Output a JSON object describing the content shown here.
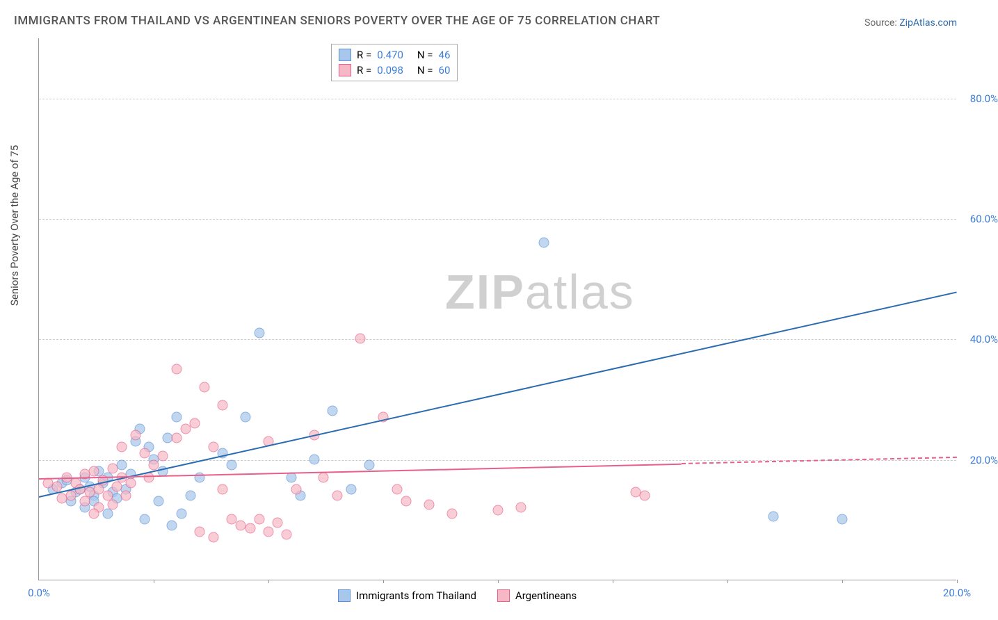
{
  "title": "IMMIGRANTS FROM THAILAND VS ARGENTINEAN SENIORS POVERTY OVER THE AGE OF 75 CORRELATION CHART",
  "source_label": "Source: ",
  "source_name": "ZipAtlas.com",
  "watermark_zip": "ZIP",
  "watermark_atlas": "atlas",
  "y_axis_label": "Seniors Poverty Over the Age of 75",
  "chart": {
    "type": "scatter",
    "xlim": [
      0,
      20
    ],
    "ylim": [
      0,
      90
    ],
    "x_ticks": [
      0,
      20
    ],
    "x_tick_labels": [
      "0.0%",
      "20.0%"
    ],
    "y_ticks": [
      20,
      40,
      60,
      80
    ],
    "y_tick_labels": [
      "20.0%",
      "40.0%",
      "60.0%",
      "80.0%"
    ],
    "grid_color": "#cccccc",
    "background_color": "#ffffff",
    "series": [
      {
        "name": "Immigrants from Thailand",
        "fill": "#a7c7eb",
        "stroke": "#5a8fd6",
        "trend_color": "#2b6cb0",
        "trend_from": [
          0,
          14
        ],
        "trend_to": [
          20,
          48
        ],
        "R": "0.470",
        "N": "46",
        "points": [
          [
            0.3,
            15
          ],
          [
            0.5,
            16
          ],
          [
            0.8,
            14.5
          ],
          [
            0.6,
            16.5
          ],
          [
            0.9,
            15
          ],
          [
            1.0,
            17
          ],
          [
            1.1,
            15.5
          ],
          [
            1.2,
            14
          ],
          [
            1.3,
            18
          ],
          [
            1.4,
            16
          ],
          [
            1.5,
            17
          ],
          [
            1.6,
            14.5
          ],
          [
            1.8,
            19
          ],
          [
            1.7,
            13.5
          ],
          [
            1.9,
            15
          ],
          [
            2.0,
            17.5
          ],
          [
            1.0,
            12
          ],
          [
            1.2,
            13
          ],
          [
            0.7,
            13
          ],
          [
            1.5,
            11
          ],
          [
            2.1,
            23
          ],
          [
            2.2,
            25
          ],
          [
            2.4,
            22
          ],
          [
            2.5,
            20
          ],
          [
            2.7,
            18
          ],
          [
            2.8,
            23.5
          ],
          [
            3.0,
            27
          ],
          [
            2.6,
            13
          ],
          [
            3.1,
            11
          ],
          [
            2.3,
            10
          ],
          [
            2.9,
            9
          ],
          [
            3.3,
            14
          ],
          [
            3.5,
            17
          ],
          [
            4.0,
            21
          ],
          [
            4.2,
            19
          ],
          [
            4.5,
            27
          ],
          [
            4.8,
            41
          ],
          [
            5.5,
            17
          ],
          [
            5.7,
            14
          ],
          [
            6.0,
            20
          ],
          [
            6.4,
            28
          ],
          [
            6.8,
            15
          ],
          [
            7.2,
            19
          ],
          [
            11.0,
            56
          ],
          [
            17.5,
            10
          ],
          [
            16.0,
            10.5
          ]
        ]
      },
      {
        "name": "Argentineans",
        "fill": "#f6b8c5",
        "stroke": "#e85f89",
        "trend_color": "#e85f89",
        "trend_from": [
          0,
          17
        ],
        "trend_to": [
          20,
          20.5
        ],
        "trend_solid_until": 14,
        "R": "0.098",
        "N": "60",
        "points": [
          [
            0.2,
            16
          ],
          [
            0.4,
            15.5
          ],
          [
            0.6,
            17
          ],
          [
            0.7,
            14
          ],
          [
            0.8,
            16
          ],
          [
            0.9,
            15
          ],
          [
            1.0,
            17.5
          ],
          [
            1.1,
            14.5
          ],
          [
            1.2,
            18
          ],
          [
            1.3,
            15
          ],
          [
            1.4,
            16.5
          ],
          [
            1.5,
            14
          ],
          [
            1.6,
            18.5
          ],
          [
            1.7,
            15.5
          ],
          [
            1.8,
            17
          ],
          [
            1.9,
            14
          ],
          [
            2.0,
            16
          ],
          [
            1.0,
            13
          ],
          [
            1.3,
            12
          ],
          [
            1.6,
            12.5
          ],
          [
            0.5,
            13.5
          ],
          [
            1.2,
            11
          ],
          [
            2.1,
            24
          ],
          [
            1.8,
            22
          ],
          [
            2.3,
            21
          ],
          [
            2.5,
            19
          ],
          [
            2.7,
            20.5
          ],
          [
            2.4,
            17
          ],
          [
            3.0,
            23.5
          ],
          [
            3.2,
            25
          ],
          [
            3.0,
            35
          ],
          [
            3.4,
            26
          ],
          [
            3.6,
            32
          ],
          [
            3.8,
            22
          ],
          [
            4.0,
            29
          ],
          [
            4.0,
            15
          ],
          [
            4.2,
            10
          ],
          [
            4.4,
            9
          ],
          [
            4.6,
            8.5
          ],
          [
            4.8,
            10
          ],
          [
            5.0,
            8
          ],
          [
            5.2,
            9.5
          ],
          [
            5.4,
            7.5
          ],
          [
            3.5,
            8
          ],
          [
            3.8,
            7
          ],
          [
            5.0,
            23
          ],
          [
            5.6,
            15
          ],
          [
            6.0,
            24
          ],
          [
            6.2,
            17
          ],
          [
            6.5,
            14
          ],
          [
            7.0,
            40
          ],
          [
            7.5,
            27
          ],
          [
            7.8,
            15
          ],
          [
            8.0,
            13
          ],
          [
            8.5,
            12.5
          ],
          [
            9.0,
            11
          ],
          [
            10.0,
            11.5
          ],
          [
            10.5,
            12
          ],
          [
            13.0,
            14.5
          ],
          [
            13.2,
            14
          ]
        ]
      }
    ]
  },
  "legend_top": {
    "r_label": "R =",
    "n_label": "N ="
  },
  "legend_bottom": {
    "series1": "Immigrants from Thailand",
    "series2": "Argentineans"
  }
}
